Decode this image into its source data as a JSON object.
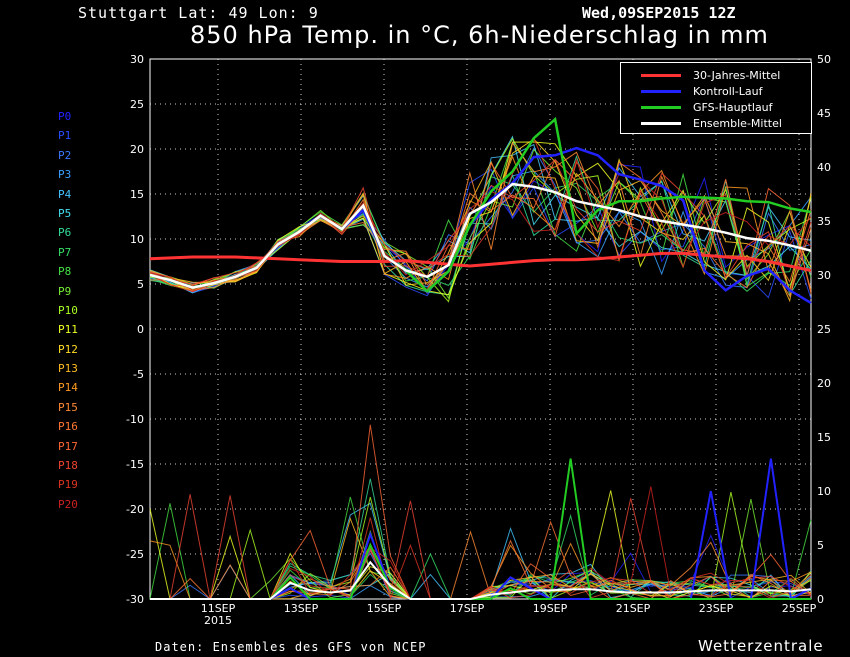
{
  "header": {
    "station": "Stuttgart   Lat: 49  Lon: 9",
    "run_time": "Wed,09SEP2015 12Z",
    "title": "850 hPa Temp. in °C, 6h-Niederschlag in mm"
  },
  "footer": {
    "source": "Daten: Ensembles des GFS von NCEP",
    "brand": "Wetterzentrale"
  },
  "members": [
    {
      "label": "P0",
      "color": "#2222ff"
    },
    {
      "label": "P1",
      "color": "#2a4cff"
    },
    {
      "label": "P2",
      "color": "#3a78ff"
    },
    {
      "label": "P3",
      "color": "#3aa0ff"
    },
    {
      "label": "P4",
      "color": "#44c4ff"
    },
    {
      "label": "P5",
      "color": "#44ddee"
    },
    {
      "label": "P6",
      "color": "#33dd99"
    },
    {
      "label": "P7",
      "color": "#33dd66"
    },
    {
      "label": "P8",
      "color": "#44e044"
    },
    {
      "label": "P9",
      "color": "#77ee33"
    },
    {
      "label": "P10",
      "color": "#aaff22"
    },
    {
      "label": "P11",
      "color": "#eeff22"
    },
    {
      "label": "P12",
      "color": "#ffdd22"
    },
    {
      "label": "P13",
      "color": "#ffbb22"
    },
    {
      "label": "P14",
      "color": "#ff9922"
    },
    {
      "label": "P15",
      "color": "#ff8833"
    },
    {
      "label": "P16",
      "color": "#ff7733"
    },
    {
      "label": "P17",
      "color": "#ff6633"
    },
    {
      "label": "P18",
      "color": "#ee4433"
    },
    {
      "label": "P19",
      "color": "#dd3322"
    },
    {
      "label": "P20",
      "color": "#cc2222"
    }
  ],
  "legend": [
    {
      "label": "30-Jahres-Mittel",
      "color": "#ff3333"
    },
    {
      "label": "Kontroll-Lauf",
      "color": "#2222ff"
    },
    {
      "label": "GFS-Hauptlauf",
      "color": "#22cc22"
    },
    {
      "label": "Ensemble-Mittel",
      "color": "#ffffff"
    }
  ],
  "chart_data": {
    "type": "line",
    "xlim": [
      "2015-09-09 12Z",
      "2015-09-25 12Z"
    ],
    "x_ticks": [
      "11SEP",
      "13SEP",
      "15SEP",
      "17SEP",
      "19SEP",
      "21SEP",
      "23SEP",
      "25SEP"
    ],
    "x_tick_extra": "2015",
    "y_left": {
      "label": "850 hPa Temp. in °C",
      "ylim": [
        -30,
        30
      ],
      "ticks": [
        "30",
        "25",
        "20",
        "15",
        "10",
        "5",
        "0",
        "-5",
        "-10",
        "-15",
        "-20",
        "-25",
        "-30"
      ]
    },
    "y_right": {
      "label": "6h-Niederschlag in mm",
      "ylim": [
        0,
        50
      ],
      "ticks": [
        "50",
        "45",
        "40",
        "35",
        "30",
        "25",
        "20",
        "15",
        "10",
        "5",
        "0"
      ]
    },
    "grid": true,
    "legend_position": "top-right",
    "temperature": {
      "climatology": [
        7.8,
        7.9,
        8.0,
        8.0,
        8.0,
        7.9,
        7.8,
        7.7,
        7.6,
        7.5,
        7.5,
        7.5,
        7.6,
        7.4,
        7.2,
        7.0,
        7.2,
        7.4,
        7.6,
        7.7,
        7.7,
        7.8,
        8.0,
        8.2,
        8.4,
        8.4,
        8.2,
        8.0,
        7.8,
        7.5,
        7.0,
        6.5
      ],
      "control": [
        6,
        5.4,
        4.6,
        5.1,
        5.8,
        6.8,
        9.4,
        10.8,
        12.6,
        11.1,
        13.2,
        8.1,
        6.5,
        4.2,
        6.4,
        11.5,
        14.4,
        16.2,
        19.1,
        19.3,
        20.1,
        19.3,
        17.2,
        16.6,
        15.9,
        14.3,
        6.5,
        4.3,
        5.9,
        6.7,
        4.3,
        2.9
      ],
      "gfs_main": [
        6,
        5.4,
        4.6,
        5.1,
        5.8,
        6.8,
        9.4,
        10.8,
        12.6,
        11.1,
        13.7,
        8.1,
        6.5,
        4.2,
        6.4,
        11.5,
        15.3,
        17.5,
        21.2,
        23.3,
        10.6,
        13.2,
        14.2,
        14.2,
        14.5,
        14.7,
        14.6,
        14.5,
        14.2,
        14.1,
        13.4,
        13.0
      ],
      "ensemble_mean": [
        6,
        5.4,
        4.6,
        5.1,
        5.8,
        6.8,
        9.4,
        10.8,
        12.6,
        11.1,
        13.7,
        8.1,
        6.5,
        5.8,
        7.1,
        12.8,
        14.1,
        16.1,
        15.8,
        15.2,
        14.2,
        13.7,
        13.2,
        12.5,
        12.0,
        11.6,
        11.2,
        10.7,
        10.1,
        9.8,
        9.3,
        8.7
      ]
    },
    "precipitation": {
      "climatology": [],
      "control": [
        0,
        0,
        0,
        0,
        0,
        0,
        0,
        1,
        0,
        0,
        0,
        6,
        1,
        0,
        0,
        0,
        0,
        0,
        2,
        1,
        0,
        0,
        0,
        0,
        0,
        0,
        0,
        0,
        10,
        0,
        0,
        13,
        0,
        1
      ],
      "gfs_main": [
        0,
        0,
        0,
        0,
        0,
        0,
        0,
        2,
        0,
        0,
        0,
        5,
        1,
        0,
        0,
        0,
        0,
        0,
        1,
        0,
        0,
        13,
        0,
        0,
        0,
        0,
        0,
        0,
        0,
        0,
        0,
        0,
        0,
        0
      ],
      "ensemble_mean": [
        0,
        0,
        0,
        0,
        0,
        0,
        0,
        1.5,
        0.8,
        0.6,
        0.8,
        3.4,
        1.2,
        0,
        0,
        0,
        0,
        0.4,
        0.6,
        0.8,
        0.8,
        0.9,
        0.9,
        0.7,
        0.6,
        0.6,
        0.6,
        0.7,
        0.8,
        0.8,
        0.8,
        0.8,
        0.7,
        0.9
      ]
    }
  }
}
